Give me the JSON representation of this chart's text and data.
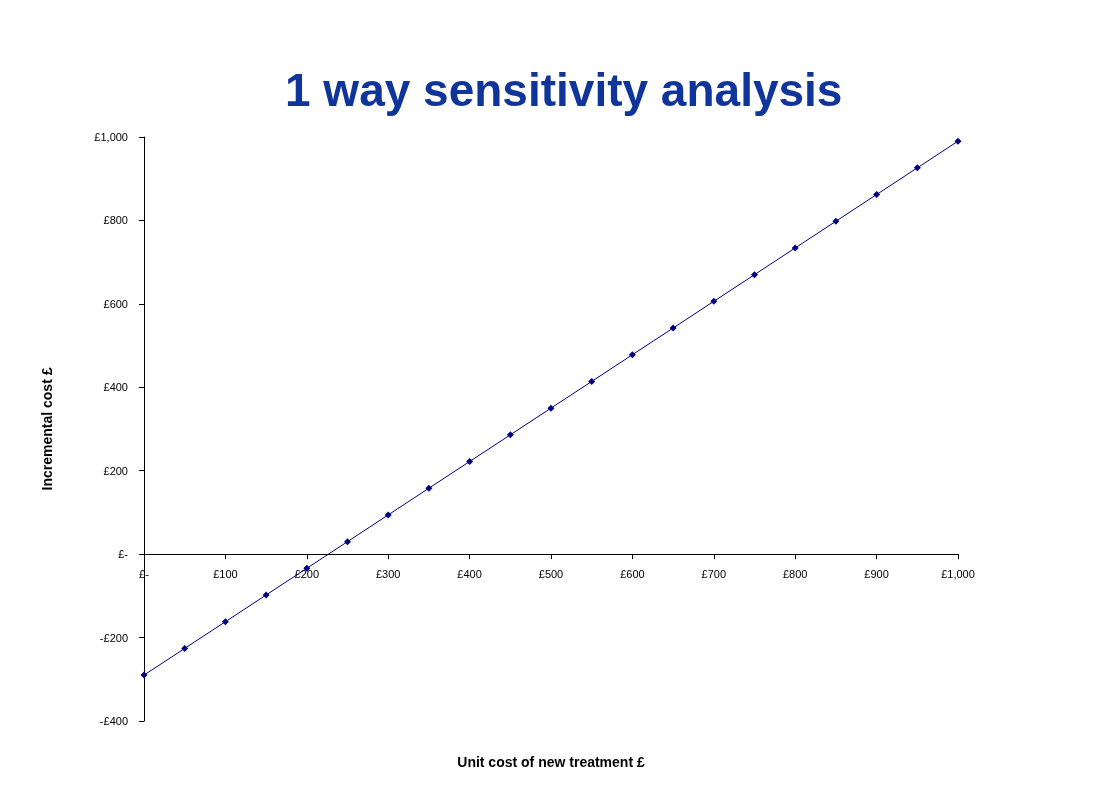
{
  "chart_data": {
    "type": "line",
    "title": "1 way sensitivity analysis",
    "xlabel": "Unit cost of new treatment £",
    "ylabel": "Incremental cost £",
    "x": [
      0,
      50,
      100,
      150,
      200,
      250,
      300,
      350,
      400,
      450,
      500,
      550,
      600,
      650,
      700,
      750,
      800,
      850,
      900,
      950,
      1000
    ],
    "series": [
      {
        "color": "#000080",
        "values": [
          -290,
          -226,
          -162,
          -98,
          -34,
          30,
          94,
          158,
          222,
          286,
          350,
          414,
          478,
          542,
          606,
          670,
          734,
          798,
          862,
          926,
          990
        ]
      }
    ],
    "xlim": [
      0,
      1000
    ],
    "xticks": [
      {
        "value": 0,
        "label": "£-"
      },
      {
        "value": 100,
        "label": "£100"
      },
      {
        "value": 200,
        "label": "£200"
      },
      {
        "value": 300,
        "label": "£300"
      },
      {
        "value": 400,
        "label": "£400"
      },
      {
        "value": 500,
        "label": "£500"
      },
      {
        "value": 600,
        "label": "£600"
      },
      {
        "value": 700,
        "label": "£700"
      },
      {
        "value": 800,
        "label": "£800"
      },
      {
        "value": 900,
        "label": "£900"
      },
      {
        "value": 1000,
        "label": "£1,000"
      }
    ],
    "ylim": [
      -400,
      1000
    ],
    "yticks": [
      {
        "value": -400,
        "label": "-£400"
      },
      {
        "value": -200,
        "label": "-£200"
      },
      {
        "value": 0,
        "label": "£-"
      },
      {
        "value": 200,
        "label": "£200"
      },
      {
        "value": 400,
        "label": "£400"
      },
      {
        "value": 600,
        "label": "£600"
      },
      {
        "value": 800,
        "label": "£800"
      },
      {
        "value": 1000,
        "label": "£1,000"
      }
    ],
    "grid": false,
    "marker": "diamond",
    "line_style": "solid"
  }
}
